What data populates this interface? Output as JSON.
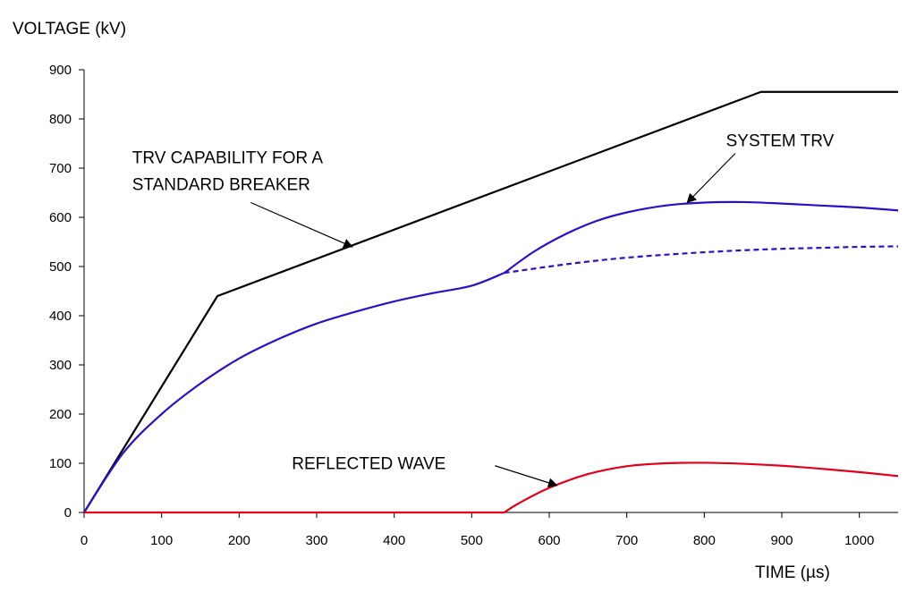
{
  "chart_data": {
    "type": "line",
    "ylabel": "VOLTAGE (kV)",
    "xlabel": "TIME (µs)",
    "xlim": [
      0,
      1050
    ],
    "ylim": [
      0,
      900
    ],
    "x_ticks": [
      0,
      100,
      200,
      300,
      400,
      500,
      600,
      700,
      800,
      900,
      1000
    ],
    "y_ticks": [
      0,
      100,
      200,
      300,
      400,
      500,
      600,
      700,
      800,
      900
    ],
    "grid": false,
    "series": [
      {
        "key": "trv_capability",
        "color": "#000000",
        "style": "solid",
        "points": [
          [
            0,
            0
          ],
          [
            172,
            440
          ],
          [
            873,
            855
          ],
          [
            1050,
            855
          ]
        ]
      },
      {
        "key": "trv_base",
        "color": "#2a10c8",
        "style": "solid",
        "points": [
          [
            0,
            0
          ],
          [
            50,
            120
          ],
          [
            100,
            200
          ],
          [
            150,
            262
          ],
          [
            200,
            313
          ],
          [
            250,
            352
          ],
          [
            300,
            384
          ],
          [
            350,
            408
          ],
          [
            400,
            429
          ],
          [
            450,
            446
          ],
          [
            500,
            461
          ],
          [
            542,
            487
          ]
        ]
      },
      {
        "key": "trv_dashed_continuation",
        "color": "#2a10c8",
        "style": "dashed",
        "points": [
          [
            542,
            487
          ],
          [
            600,
            500
          ],
          [
            650,
            510
          ],
          [
            700,
            518
          ],
          [
            750,
            524
          ],
          [
            800,
            529
          ],
          [
            850,
            533
          ],
          [
            900,
            536
          ],
          [
            950,
            538
          ],
          [
            1000,
            540
          ],
          [
            1050,
            541
          ]
        ]
      },
      {
        "key": "system_trv",
        "color": "#2a10c8",
        "style": "solid",
        "points": [
          [
            542,
            487
          ],
          [
            580,
            530
          ],
          [
            620,
            565
          ],
          [
            660,
            592
          ],
          [
            700,
            610
          ],
          [
            750,
            624
          ],
          [
            800,
            630
          ],
          [
            850,
            631
          ],
          [
            900,
            628
          ],
          [
            950,
            624
          ],
          [
            1000,
            620
          ],
          [
            1050,
            614
          ]
        ]
      },
      {
        "key": "reflected_wave",
        "color": "#e3001b",
        "style": "solid",
        "points": [
          [
            0,
            0
          ],
          [
            542,
            0
          ],
          [
            560,
            18
          ],
          [
            600,
            50
          ],
          [
            650,
            78
          ],
          [
            700,
            94
          ],
          [
            750,
            100
          ],
          [
            800,
            101
          ],
          [
            850,
            99
          ],
          [
            900,
            95
          ],
          [
            950,
            89
          ],
          [
            1000,
            82
          ],
          [
            1050,
            74
          ]
        ]
      }
    ],
    "annotations": [
      {
        "lines": [
          "TRV CAPABILITY FOR A",
          "STANDARD BREAKER"
        ],
        "text_pos": [
          62,
          710
        ],
        "arrow_from": [
          215,
          630
        ],
        "arrow_to": [
          346,
          540
        ]
      },
      {
        "lines": [
          "SYSTEM  TRV"
        ],
        "text_pos": [
          828,
          745
        ],
        "arrow_from": [
          840,
          730
        ],
        "arrow_to": [
          778,
          630
        ]
      },
      {
        "lines": [
          "REFLECTED WAVE"
        ],
        "text_pos": [
          268,
          88
        ],
        "arrow_from": [
          530,
          95
        ],
        "arrow_to": [
          610,
          55
        ]
      }
    ]
  }
}
